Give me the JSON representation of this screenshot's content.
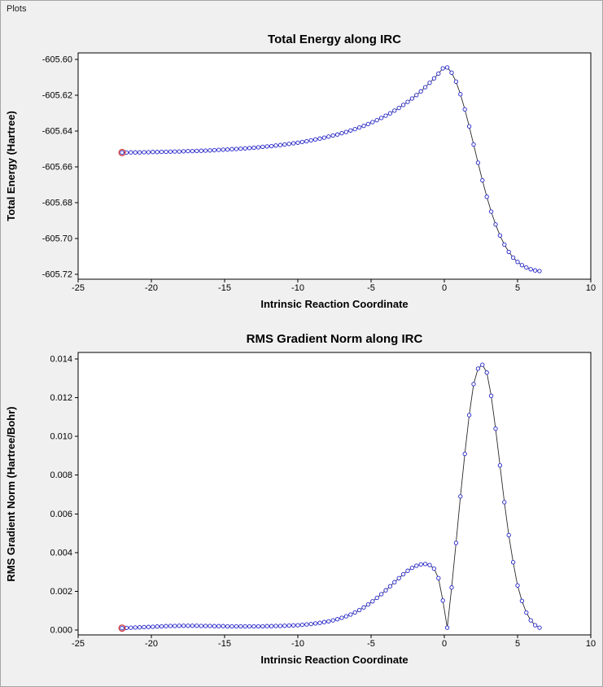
{
  "window": {
    "title": "Plots"
  },
  "colors": {
    "background": "#f0f0f0",
    "plot_background": "#ffffff",
    "line": "#2a2a2a",
    "marker": "#2424cc",
    "first_point_highlight": "#cc2222",
    "axis": "#000000"
  },
  "chart_data": [
    {
      "type": "line",
      "title": "Total Energy along IRC",
      "xlabel": "Intrinsic Reaction Coordinate",
      "ylabel": "Total Energy (Hartree)",
      "xlim": [
        -25,
        10
      ],
      "ylim": [
        -605.72,
        -605.6
      ],
      "xticks": [
        -25,
        -20,
        -15,
        -10,
        -5,
        0,
        5,
        10
      ],
      "xtick_labels": [
        "-25",
        "-20",
        "-15",
        "-10",
        "-5",
        "0",
        "5",
        "10"
      ],
      "yticks": [
        -605.72,
        -605.7,
        -605.68,
        -605.66,
        -605.64,
        -605.62,
        -605.6
      ],
      "ytick_labels": [
        "-605.72",
        "-605.70",
        "-605.68",
        "-605.66",
        "-605.64",
        "-605.62",
        "-605.60"
      ],
      "grid": false,
      "legend": null,
      "marker": "open-circle",
      "highlight_first_point": true,
      "x": [
        -22.0,
        -21.7,
        -21.4,
        -21.1,
        -20.8,
        -20.5,
        -20.2,
        -19.9,
        -19.6,
        -19.3,
        -19.0,
        -18.7,
        -18.4,
        -18.1,
        -17.8,
        -17.5,
        -17.2,
        -16.9,
        -16.6,
        -16.3,
        -16.0,
        -15.7,
        -15.4,
        -15.1,
        -14.8,
        -14.5,
        -14.2,
        -13.9,
        -13.6,
        -13.3,
        -13.0,
        -12.7,
        -12.4,
        -12.1,
        -11.8,
        -11.5,
        -11.2,
        -10.9,
        -10.6,
        -10.3,
        -10.0,
        -9.7,
        -9.4,
        -9.1,
        -8.8,
        -8.5,
        -8.2,
        -7.9,
        -7.6,
        -7.3,
        -7.0,
        -6.7,
        -6.4,
        -6.1,
        -5.8,
        -5.5,
        -5.2,
        -4.9,
        -4.6,
        -4.3,
        -4.0,
        -3.7,
        -3.4,
        -3.1,
        -2.8,
        -2.5,
        -2.2,
        -1.9,
        -1.6,
        -1.3,
        -1.0,
        -0.7,
        -0.4,
        -0.1,
        0.2,
        0.5,
        0.8,
        1.1,
        1.4,
        1.7,
        2.0,
        2.3,
        2.6,
        2.9,
        3.2,
        3.5,
        3.8,
        4.1,
        4.4,
        4.7,
        5.0,
        5.3,
        5.6,
        5.9,
        6.2,
        6.5
      ],
      "y": [
        -605.652,
        -605.652,
        -605.6519,
        -605.6519,
        -605.6519,
        -605.6518,
        -605.6518,
        -605.6517,
        -605.6517,
        -605.6516,
        -605.6516,
        -605.6515,
        -605.6514,
        -605.6514,
        -605.6513,
        -605.6512,
        -605.6512,
        -605.6511,
        -605.651,
        -605.6509,
        -605.6508,
        -605.6507,
        -605.6505,
        -605.6504,
        -605.6503,
        -605.6501,
        -605.65,
        -605.6498,
        -605.6497,
        -605.6495,
        -605.6493,
        -605.6491,
        -605.6488,
        -605.6486,
        -605.6484,
        -605.6481,
        -605.6478,
        -605.6475,
        -605.6472,
        -605.6468,
        -605.6465,
        -605.6461,
        -605.6457,
        -605.6452,
        -605.6447,
        -605.6442,
        -605.6437,
        -605.6431,
        -605.6425,
        -605.6419,
        -605.6412,
        -605.6405,
        -605.6397,
        -605.6389,
        -605.638,
        -605.6371,
        -605.6361,
        -605.635,
        -605.6339,
        -605.6327,
        -605.6314,
        -605.6301,
        -605.6286,
        -605.6271,
        -605.6254,
        -605.6237,
        -605.6218,
        -605.6199,
        -605.6178,
        -605.6155,
        -605.6131,
        -605.6106,
        -605.6079,
        -605.605,
        -605.6045,
        -605.6074,
        -605.6124,
        -605.6194,
        -605.6279,
        -605.6374,
        -605.6475,
        -605.6577,
        -605.6675,
        -605.6767,
        -605.685,
        -605.6922,
        -605.6983,
        -605.7034,
        -605.7075,
        -605.7107,
        -605.7131,
        -605.7149,
        -605.7162,
        -605.7172,
        -605.7178,
        -605.7182
      ]
    },
    {
      "type": "line",
      "title": "RMS Gradient Norm along IRC",
      "xlabel": "Intrinsic Reaction Coordinate",
      "ylabel": "RMS Gradient Norm (Hartree/Bohr)",
      "xlim": [
        -25,
        10
      ],
      "ylim": [
        0.0,
        0.014
      ],
      "xticks": [
        -25,
        -20,
        -15,
        -10,
        -5,
        0,
        5,
        10
      ],
      "xtick_labels": [
        "-25",
        "-20",
        "-15",
        "-10",
        "-5",
        "0",
        "5",
        "10"
      ],
      "yticks": [
        0.0,
        0.002,
        0.004,
        0.006,
        0.008,
        0.01,
        0.012,
        0.014
      ],
      "ytick_labels": [
        "0.000",
        "0.002",
        "0.004",
        "0.006",
        "0.008",
        "0.010",
        "0.012",
        "0.014"
      ],
      "grid": false,
      "legend": null,
      "marker": "open-circle",
      "highlight_first_point": true,
      "x": [
        -22.0,
        -21.7,
        -21.4,
        -21.1,
        -20.8,
        -20.5,
        -20.2,
        -19.9,
        -19.6,
        -19.3,
        -19.0,
        -18.7,
        -18.4,
        -18.1,
        -17.8,
        -17.5,
        -17.2,
        -16.9,
        -16.6,
        -16.3,
        -16.0,
        -15.7,
        -15.4,
        -15.1,
        -14.8,
        -14.5,
        -14.2,
        -13.9,
        -13.6,
        -13.3,
        -13.0,
        -12.7,
        -12.4,
        -12.1,
        -11.8,
        -11.5,
        -11.2,
        -10.9,
        -10.6,
        -10.3,
        -10.0,
        -9.7,
        -9.4,
        -9.1,
        -8.8,
        -8.5,
        -8.2,
        -7.9,
        -7.6,
        -7.3,
        -7.0,
        -6.7,
        -6.4,
        -6.1,
        -5.8,
        -5.5,
        -5.2,
        -4.9,
        -4.6,
        -4.3,
        -4.0,
        -3.7,
        -3.4,
        -3.1,
        -2.8,
        -2.5,
        -2.2,
        -1.9,
        -1.6,
        -1.3,
        -1.0,
        -0.7,
        -0.4,
        -0.1,
        0.2,
        0.5,
        0.8,
        1.1,
        1.4,
        1.7,
        2.0,
        2.3,
        2.6,
        2.9,
        3.2,
        3.5,
        3.8,
        4.1,
        4.4,
        4.7,
        5.0,
        5.3,
        5.6,
        5.9,
        6.2,
        6.5
      ],
      "y": [
        0.0001,
        0.00011,
        0.00012,
        0.00013,
        0.00014,
        0.00015,
        0.00016,
        0.00017,
        0.00018,
        0.00019,
        0.0002,
        0.00021,
        0.00021,
        0.00022,
        0.00022,
        0.00022,
        0.00022,
        0.00022,
        0.00021,
        0.00021,
        0.00021,
        0.0002,
        0.0002,
        0.0002,
        0.00019,
        0.00019,
        0.00019,
        0.00019,
        0.00019,
        0.00019,
        0.00019,
        0.00019,
        0.00019,
        0.0002,
        0.0002,
        0.00021,
        0.00021,
        0.00022,
        0.00023,
        0.00024,
        0.00025,
        0.00027,
        0.00029,
        0.00031,
        0.00034,
        0.00037,
        0.00041,
        0.00045,
        0.0005,
        0.00056,
        0.00063,
        0.00071,
        0.0008,
        0.00091,
        0.00103,
        0.00117,
        0.00132,
        0.00148,
        0.00166,
        0.00185,
        0.00205,
        0.00226,
        0.00247,
        0.00268,
        0.00288,
        0.00306,
        0.00321,
        0.00332,
        0.00339,
        0.00341,
        0.00336,
        0.00317,
        0.00268,
        0.00152,
        0.00012,
        0.0022,
        0.0045,
        0.0069,
        0.0091,
        0.0111,
        0.0127,
        0.0135,
        0.0137,
        0.0133,
        0.0121,
        0.0104,
        0.0085,
        0.0066,
        0.0049,
        0.0035,
        0.0023,
        0.0015,
        0.0009,
        0.0005,
        0.00025,
        0.00012
      ]
    }
  ]
}
